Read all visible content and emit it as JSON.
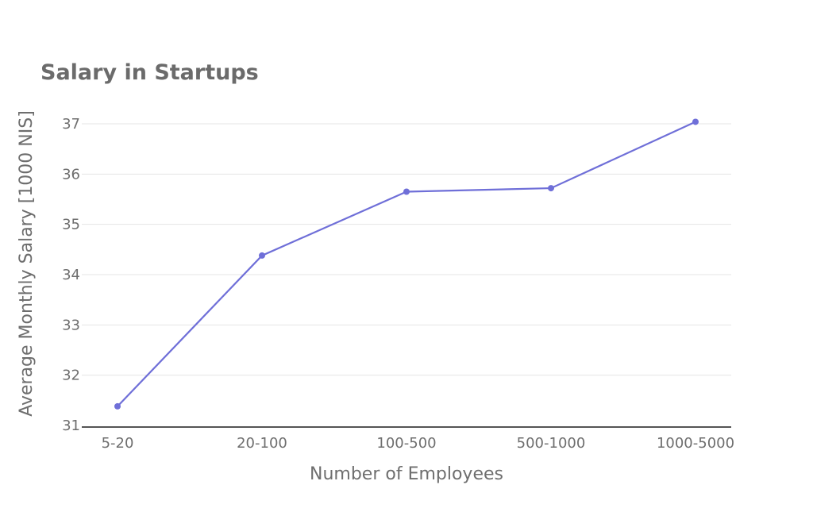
{
  "chart_data": {
    "type": "line",
    "title": "Salary in Startups",
    "xlabel": "Number of Employees",
    "ylabel": "Average Monthly Salary [1000 NIS]",
    "categories": [
      "5-20",
      "20-100",
      "100-500",
      "500-1000",
      "1000-5000"
    ],
    "series": [
      {
        "values": [
          31.38,
          34.38,
          35.65,
          35.72,
          37.04
        ],
        "color": "#6f6fd8"
      }
    ],
    "ylim": [
      31,
      37
    ],
    "yticks": [
      31,
      32,
      33,
      34,
      35,
      36,
      37
    ],
    "grid": true,
    "markers": true
  }
}
